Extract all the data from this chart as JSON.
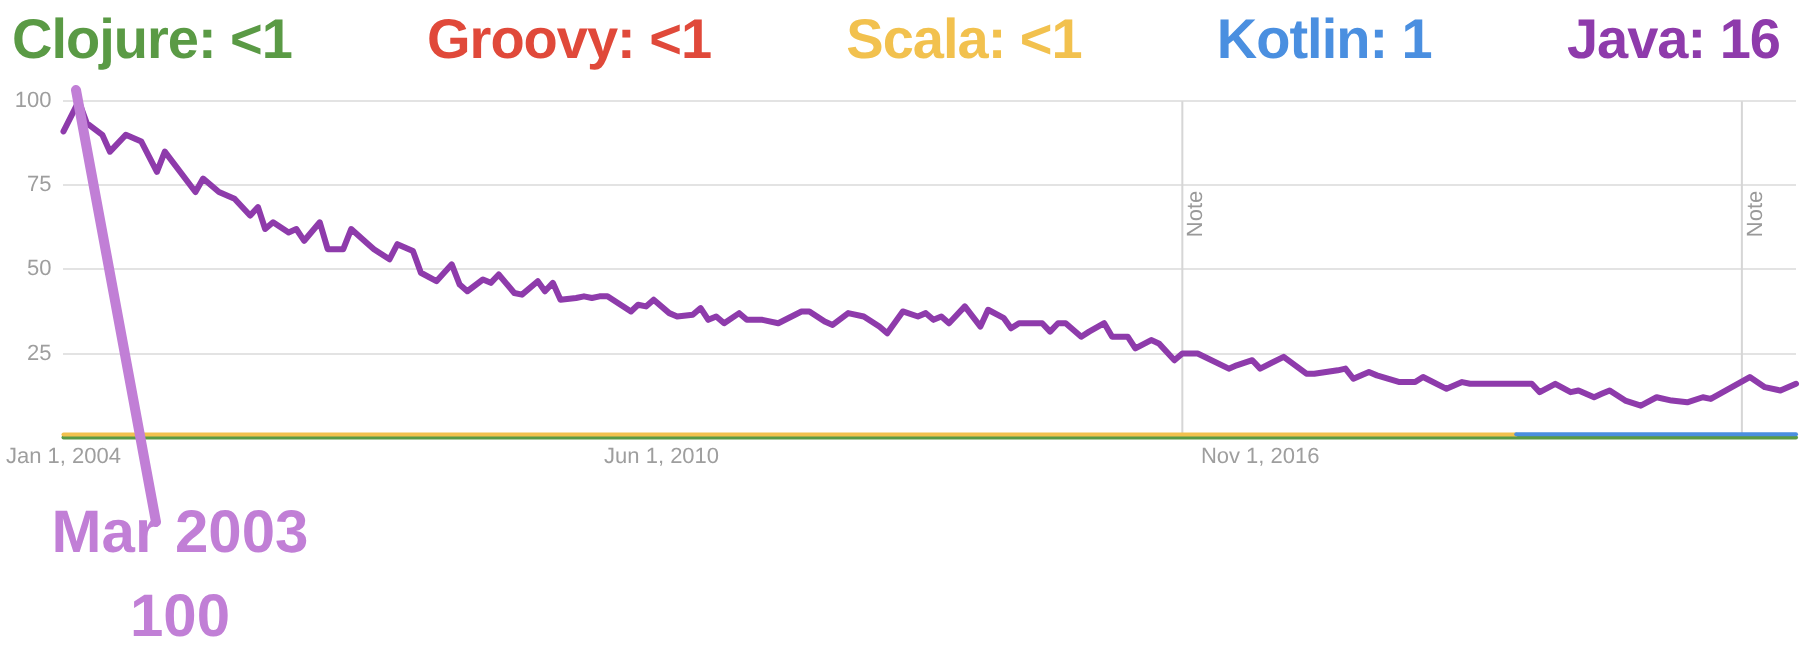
{
  "chart_data": {
    "type": "line",
    "legend": "top",
    "grid": "y",
    "marker": "none",
    "line_style": "solid",
    "xlim": [
      "2004-01-01",
      "2022-08-01"
    ],
    "xticks": [
      {
        "value": "2004-01-01",
        "label": "Jan 1, 2004"
      },
      {
        "value": "2010-06-01",
        "label": "Jun 1, 2010"
      },
      {
        "value": "2016-11-01",
        "label": "Nov 1, 2016"
      }
    ],
    "ylim": [
      0,
      100
    ],
    "yticks": [
      25,
      50,
      75,
      100
    ],
    "ref_lines": [
      {
        "axis": "x",
        "value": "2016-01-01",
        "label": "Note",
        "color": "#d6d6d6"
      },
      {
        "axis": "x",
        "value": "2022-01-01",
        "label": "Note",
        "color": "#d6d6d6"
      }
    ],
    "annotations": [
      "Mar 2003",
      "100"
    ],
    "series": [
      {
        "name": "Clojure: <1",
        "color": "#5a9a45",
        "x": [
          "2004-01",
          "2022-08"
        ],
        "values": [
          0,
          0
        ]
      },
      {
        "name": "Groovy: <1",
        "color": "#e0493a"
      },
      {
        "name": "Scala: <1",
        "color": "#f2c14e",
        "x": [
          "2004-01",
          "2019-08"
        ],
        "values": [
          0.9,
          0.9
        ]
      },
      {
        "name": "Kotlin: 1",
        "color": "#4a8fe0",
        "x": [
          "2019-08",
          "2022-08"
        ],
        "values": [
          1,
          1
        ]
      },
      {
        "name": "Java: 16",
        "color": "#8e3bab",
        "x": [
          "2004-01",
          "2004-03",
          "2004-04",
          "2004-06",
          "2004-07",
          "2004-09",
          "2004-11",
          "2005-01",
          "2005-02",
          "2005-06",
          "2005-07",
          "2005-09",
          "2005-11",
          "2006-01",
          "2006-02",
          "2006-03",
          "2006-04",
          "2006-06",
          "2006-07",
          "2006-08",
          "2006-10",
          "2006-11",
          "2007-01",
          "2007-02",
          "2007-04",
          "2007-05",
          "2007-07",
          "2007-08",
          "2007-10",
          "2007-11",
          "2008-01",
          "2008-03",
          "2008-04",
          "2008-05",
          "2008-07",
          "2008-08",
          "2008-09",
          "2008-11",
          "2008-12",
          "2009-02",
          "2009-03",
          "2009-04",
          "2009-05",
          "2009-07",
          "2009-08",
          "2009-09",
          "2009-10",
          "2009-11",
          "2010-02",
          "2010-03",
          "2010-04",
          "2010-05",
          "2010-07",
          "2010-08",
          "2010-10",
          "2010-11",
          "2010-12",
          "2011-01",
          "2011-02",
          "2011-04",
          "2011-05",
          "2011-07",
          "2011-09",
          "2011-12",
          "2012-01",
          "2012-03",
          "2012-04",
          "2012-06",
          "2012-08",
          "2012-10",
          "2012-11",
          "2013-01",
          "2013-03",
          "2013-04",
          "2013-05",
          "2013-06",
          "2013-07",
          "2013-09",
          "2013-11",
          "2013-12",
          "2014-02",
          "2014-03",
          "2014-04",
          "2014-07",
          "2014-08",
          "2014-09",
          "2014-10",
          "2014-12",
          "2015-01",
          "2015-03",
          "2015-04",
          "2015-06",
          "2015-07",
          "2015-09",
          "2015-10",
          "2015-12",
          "2016-01",
          "2016-03",
          "2016-07",
          "2016-08",
          "2016-10",
          "2016-11",
          "2017-02",
          "2017-05",
          "2017-06",
          "2017-09",
          "2017-10",
          "2017-11",
          "2018-01",
          "2018-02",
          "2018-05",
          "2018-07",
          "2018-08",
          "2018-11",
          "2019-01",
          "2019-02",
          "2019-10",
          "2019-11",
          "2020-01",
          "2020-03",
          "2020-04",
          "2020-06",
          "2020-07",
          "2020-08",
          "2020-10",
          "2020-12",
          "2021-02",
          "2021-04",
          "2021-06",
          "2021-08",
          "2021-09",
          "2022-02",
          "2022-04",
          "2022-06",
          "2022-08"
        ],
        "values": [
          91,
          100,
          93.5,
          90,
          85,
          90,
          88,
          79,
          85,
          73,
          77,
          73,
          71,
          66,
          68.5,
          62,
          64,
          61,
          62,
          58.5,
          64,
          56,
          56,
          62,
          58,
          56,
          53,
          57.5,
          55.5,
          49,
          46.5,
          51.5,
          45.5,
          43.5,
          47,
          46,
          48.5,
          43,
          42.5,
          46.5,
          43.5,
          46,
          41,
          41.5,
          42,
          41.5,
          42,
          42,
          37.5,
          39.5,
          39,
          41,
          37,
          36,
          36.5,
          38.5,
          35,
          36,
          34,
          37,
          35,
          35,
          34,
          37.5,
          37.5,
          34.5,
          33.5,
          37,
          36,
          33,
          31,
          37.5,
          36,
          37,
          35,
          36,
          34,
          39,
          33,
          38,
          35.5,
          32.5,
          34,
          34,
          31.5,
          34,
          34,
          30,
          31.5,
          34,
          30,
          30,
          26.5,
          29,
          28,
          23,
          25,
          25,
          20.5,
          21.5,
          23,
          20.5,
          24,
          19,
          19,
          20,
          20.5,
          17.5,
          19.5,
          18.5,
          16.5,
          16.5,
          18,
          14.5,
          16.5,
          16,
          16,
          13.5,
          16,
          13.5,
          14,
          12,
          13,
          14,
          11,
          9.5,
          12,
          11,
          10.5,
          12,
          11.5,
          18,
          15,
          14,
          16
        ]
      }
    ]
  }
}
